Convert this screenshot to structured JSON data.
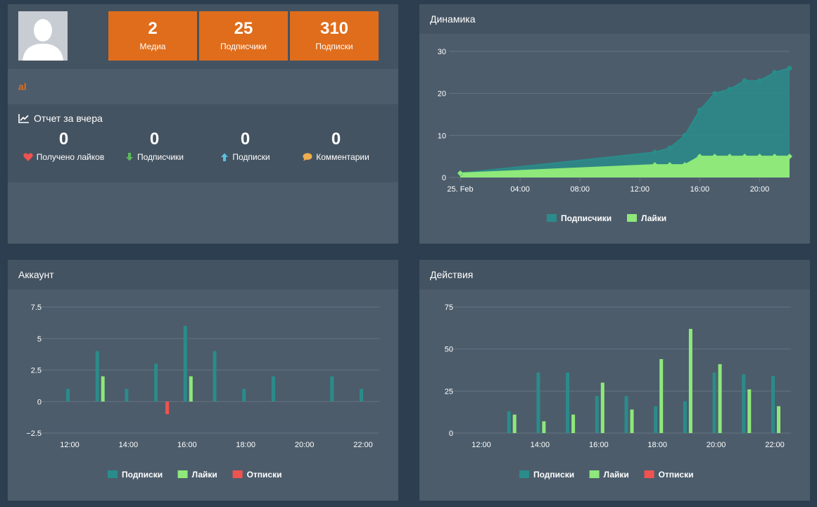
{
  "profile": {
    "stats": [
      {
        "value": "2",
        "label": "Медиа"
      },
      {
        "value": "25",
        "label": "Подписчики"
      },
      {
        "value": "310",
        "label": "Подписки"
      }
    ],
    "username": "al",
    "report_title": "Отчет за вчера",
    "report_items": [
      {
        "value": "0",
        "label": "Получено лайков",
        "icon": "heart-icon"
      },
      {
        "value": "0",
        "label": "Подписчики",
        "icon": "arrow-down-icon"
      },
      {
        "value": "0",
        "label": "Подписки",
        "icon": "arrow-up-icon"
      },
      {
        "value": "0",
        "label": "Комментарии",
        "icon": "comment-icon"
      }
    ]
  },
  "colors": {
    "orange": "#e06d1b",
    "teal": "#2a8c8a",
    "green": "#8ee87a",
    "red": "#ef5350"
  },
  "chart_data": [
    {
      "type": "area",
      "title": "Динамика",
      "x_ticks": [
        "25. Feb",
        "04:00",
        "08:00",
        "12:00",
        "16:00",
        "20:00"
      ],
      "x_tick_hours": [
        0,
        4,
        8,
        12,
        16,
        20
      ],
      "ylim": [
        0,
        30
      ],
      "y_ticks": [
        0,
        10,
        20,
        30
      ],
      "x_hours": [
        0,
        13,
        14,
        15,
        16,
        17,
        18,
        19,
        20,
        21,
        22
      ],
      "series": [
        {
          "name": "Подписчики",
          "values": [
            1,
            6,
            7,
            10,
            16,
            20,
            21,
            23,
            23,
            25,
            26
          ]
        },
        {
          "name": "Лайки",
          "values": [
            1,
            3,
            3,
            3,
            5,
            5,
            5,
            5,
            5,
            5,
            5
          ]
        }
      ],
      "legend": "bottom"
    },
    {
      "type": "bar",
      "title": "Аккаунт",
      "x_ticks": [
        "12:00",
        "14:00",
        "16:00",
        "18:00",
        "20:00",
        "22:00"
      ],
      "x_tick_hours": [
        12,
        14,
        16,
        18,
        20,
        22
      ],
      "ylim": [
        -2.5,
        7.5
      ],
      "y_ticks": [
        -2.5,
        0,
        2.5,
        5,
        7.5
      ],
      "y_tick_labels": [
        "−2.5",
        "0",
        "2.5",
        "5",
        "7.5"
      ],
      "x_hours": [
        12,
        13,
        14,
        15,
        16,
        17,
        18,
        19,
        20,
        21,
        22
      ],
      "series": [
        {
          "name": "Подписки",
          "values": [
            1,
            4,
            1,
            3,
            6,
            4,
            1,
            2,
            0,
            2,
            1
          ]
        },
        {
          "name": "Лайки",
          "values": [
            0,
            2,
            0,
            0,
            2,
            0,
            0,
            0,
            0,
            0,
            0
          ]
        },
        {
          "name": "Отписки",
          "values": [
            0,
            0,
            0,
            -1,
            0,
            0,
            0,
            0,
            0,
            0,
            0
          ]
        }
      ],
      "legend": "bottom"
    },
    {
      "type": "bar",
      "title": "Действия",
      "x_ticks": [
        "12:00",
        "14:00",
        "16:00",
        "18:00",
        "20:00",
        "22:00"
      ],
      "x_tick_hours": [
        12,
        14,
        16,
        18,
        20,
        22
      ],
      "ylim": [
        0,
        75
      ],
      "y_ticks": [
        0,
        25,
        50,
        75
      ],
      "y_tick_labels": [
        "0",
        "25",
        "50",
        "75"
      ],
      "x_hours": [
        13,
        14,
        15,
        16,
        17,
        18,
        19,
        20,
        21,
        22
      ],
      "series": [
        {
          "name": "Подписки",
          "values": [
            13,
            36,
            36,
            22,
            22,
            16,
            19,
            36,
            35,
            34
          ]
        },
        {
          "name": "Лайки",
          "values": [
            11,
            7,
            11,
            30,
            14,
            44,
            62,
            41,
            26,
            16
          ]
        },
        {
          "name": "Отписки",
          "values": [
            0,
            0,
            0,
            0,
            0,
            0,
            0,
            0,
            0,
            0
          ]
        }
      ],
      "legend": "bottom"
    }
  ]
}
